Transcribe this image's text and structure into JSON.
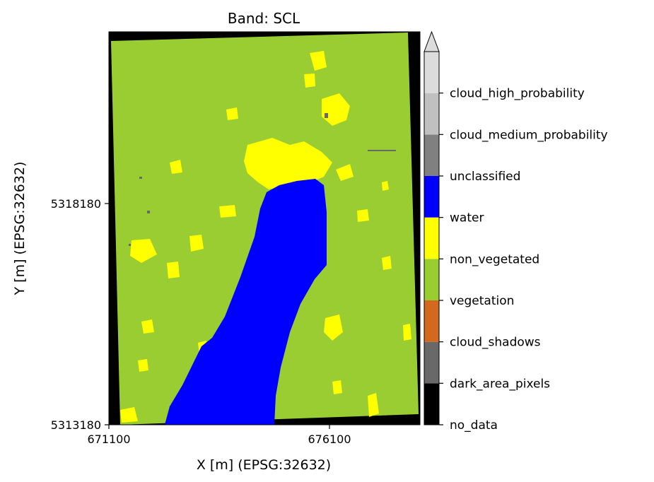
{
  "chart_data": {
    "type": "heatmap",
    "title": "Band: SCL",
    "xlabel": "X [m] (EPSG:32632)",
    "ylabel": "Y [m] (EPSG:32632)",
    "xlim": [
      671100,
      678100
    ],
    "ylim": [
      5313180,
      5322080
    ],
    "x_ticks": [
      "671100",
      "676100"
    ],
    "y_ticks": [
      "5313180",
      "5318180"
    ],
    "colorbar": {
      "extend": "max",
      "classes": [
        {
          "label": "no_data",
          "color": "#000000"
        },
        {
          "label": "dark_area_pixels",
          "color": "#696969"
        },
        {
          "label": "cloud_shadows",
          "color": "#d2691e"
        },
        {
          "label": "vegetation",
          "color": "#9acd32"
        },
        {
          "label": "non_vegetated",
          "color": "#ffff00"
        },
        {
          "label": "water",
          "color": "#0000ff"
        },
        {
          "label": "unclassified",
          "color": "#808080"
        },
        {
          "label": "cloud_medium_probability",
          "color": "#c0c0c0"
        },
        {
          "label": "cloud_high_probability",
          "color": "#dcdcdc"
        }
      ]
    }
  }
}
